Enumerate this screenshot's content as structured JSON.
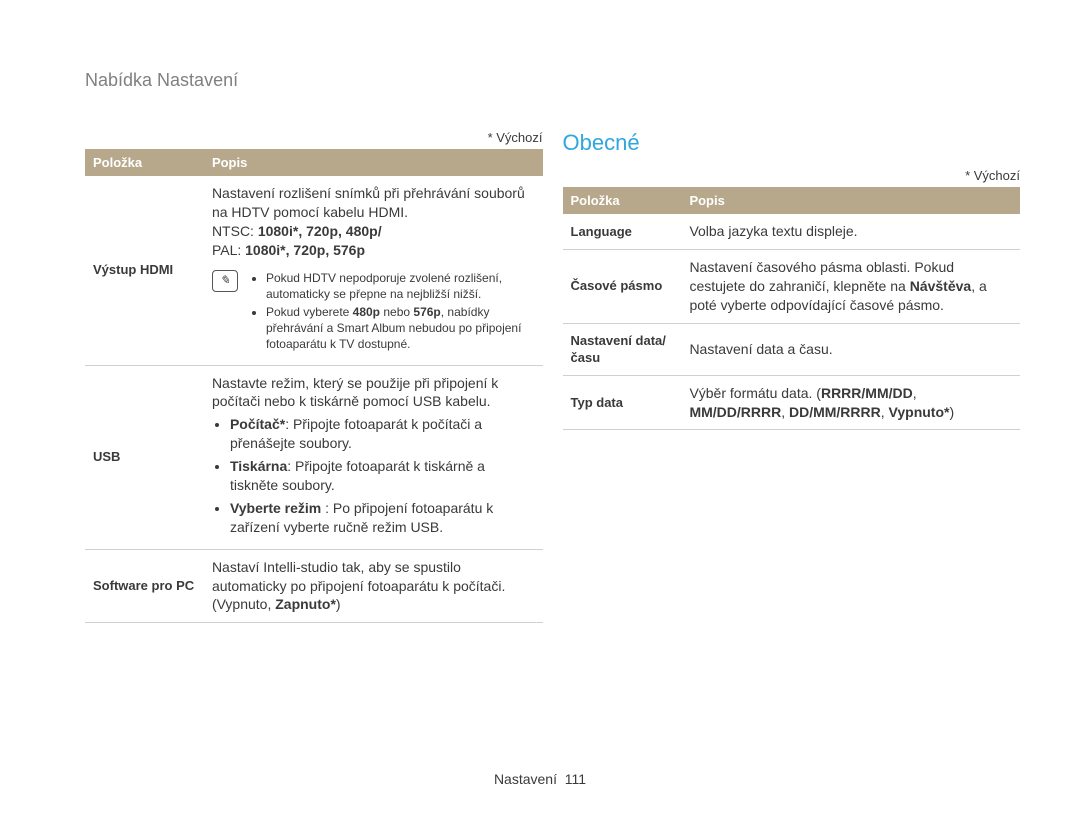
{
  "page_title": "Nabídka Nastavení",
  "default_marker": "* Výchozí",
  "footer": {
    "label": "Nastavení",
    "page_no": "111"
  },
  "section_title": "Obecné",
  "colors": {
    "header_bg": "#b8a88b",
    "header_text": "#ffffff",
    "section_title": "#2fa7df",
    "row_border": "#d0d0d0",
    "text": "#3a3a3a",
    "page_title": "#808080",
    "background": "#ffffff"
  },
  "left_table": {
    "headers": [
      "Položka",
      "Popis"
    ],
    "rows": [
      {
        "label": "Výstup HDMI",
        "intro": "Nastavení rozlišení snímků při přehrávání souborů na HDTV pomocí kabelu HDMI.",
        "lines": [
          {
            "prefix": "NTSC: ",
            "bold": "1080i*",
            "rest": ", 720p, 480p/"
          },
          {
            "prefix": "PAL: ",
            "bold": "1080i*",
            "rest": ", 720p, 576p"
          }
        ],
        "note_items": [
          "Pokud HDTV nepodporuje zvolené rozlišení, automaticky se přepne na nejbližší nižší.",
          "Pokud vyberete <b>480p</b> nebo <b>576p</b>, nabídky přehrávání a Smart Album nebudou po připojení fotoaparátu k TV dostupné."
        ]
      },
      {
        "label": "USB",
        "intro": "Nastavte režim, který se použije při připojení k počítači nebo k tiskárně pomocí USB kabelu.",
        "bullets": [
          "<b>Počítač*</b>: Připojte fotoaparát k počítači a přenášejte soubory.",
          "<b>Tiskárna</b>: Připojte fotoaparát k tiskárně a tiskněte soubory.",
          "<b>Vyberte režim</b> : Po připojení fotoaparátu k zařízení vyberte ručně režim USB."
        ]
      },
      {
        "label": "Software pro PC",
        "intro": "Nastaví Intelli-studio tak, aby se spustilo automaticky po připojení fotoaparátu k počítači.",
        "tail": "(Vypnuto, <b>Zapnuto*</b>)"
      }
    ]
  },
  "right_table": {
    "headers": [
      "Položka",
      "Popis"
    ],
    "rows": [
      {
        "label": "Language",
        "desc": "Volba jazyka textu displeje."
      },
      {
        "label": "Časové pásmo",
        "desc": "Nastavení časového pásma oblasti. Pokud cestujete do zahraničí, klepněte na <b>Návštěva</b>, a poté vyberte odpovídající časové pásmo."
      },
      {
        "label": "Nastavení data/času",
        "desc": "Nastavení data a času."
      },
      {
        "label": "Typ data",
        "desc": "Výběr formátu data. (<b>RRRR/MM/DD</b>, <b>MM/DD/RRRR</b>, <b>DD/MM/RRRR</b>, <b>Vypnuto*</b>)"
      }
    ]
  }
}
